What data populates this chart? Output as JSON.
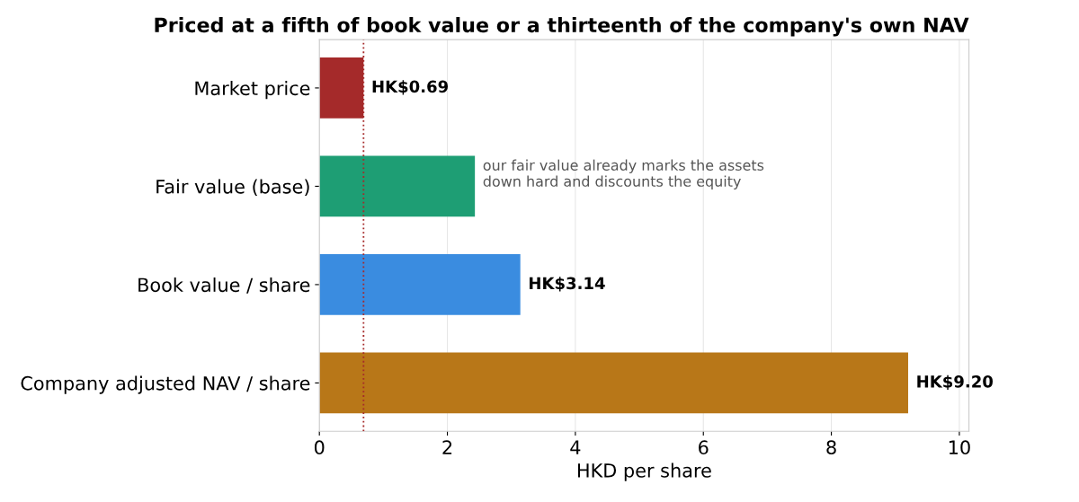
{
  "chart_data": {
    "type": "bar",
    "orientation": "horizontal",
    "title": "Priced at a fifth of book value or a thirteenth of the company's own NAV",
    "xlabel": "HKD per share",
    "categories": [
      "Market price",
      "Fair value (base)",
      "Book value / share",
      "Company adjusted NAV / share"
    ],
    "values": [
      0.69,
      2.43,
      3.14,
      9.2
    ],
    "colors": [
      "#a52a2a",
      "#1e9e74",
      "#3a8ce0",
      "#b87718"
    ],
    "value_labels": [
      "HK$0.69",
      null,
      "HK$3.14",
      "HK$9.20"
    ],
    "xlim": [
      0,
      10.15
    ],
    "xticks": [
      0,
      2,
      4,
      6,
      8,
      10
    ],
    "grid": "x",
    "ref_lines": [
      {
        "axis": "x",
        "value": 0.69,
        "color": "#a52a2a",
        "line_style": "dotted"
      }
    ],
    "annotations": [
      "our fair value already marks the assets\ndown hard and discounts the equity"
    ]
  }
}
